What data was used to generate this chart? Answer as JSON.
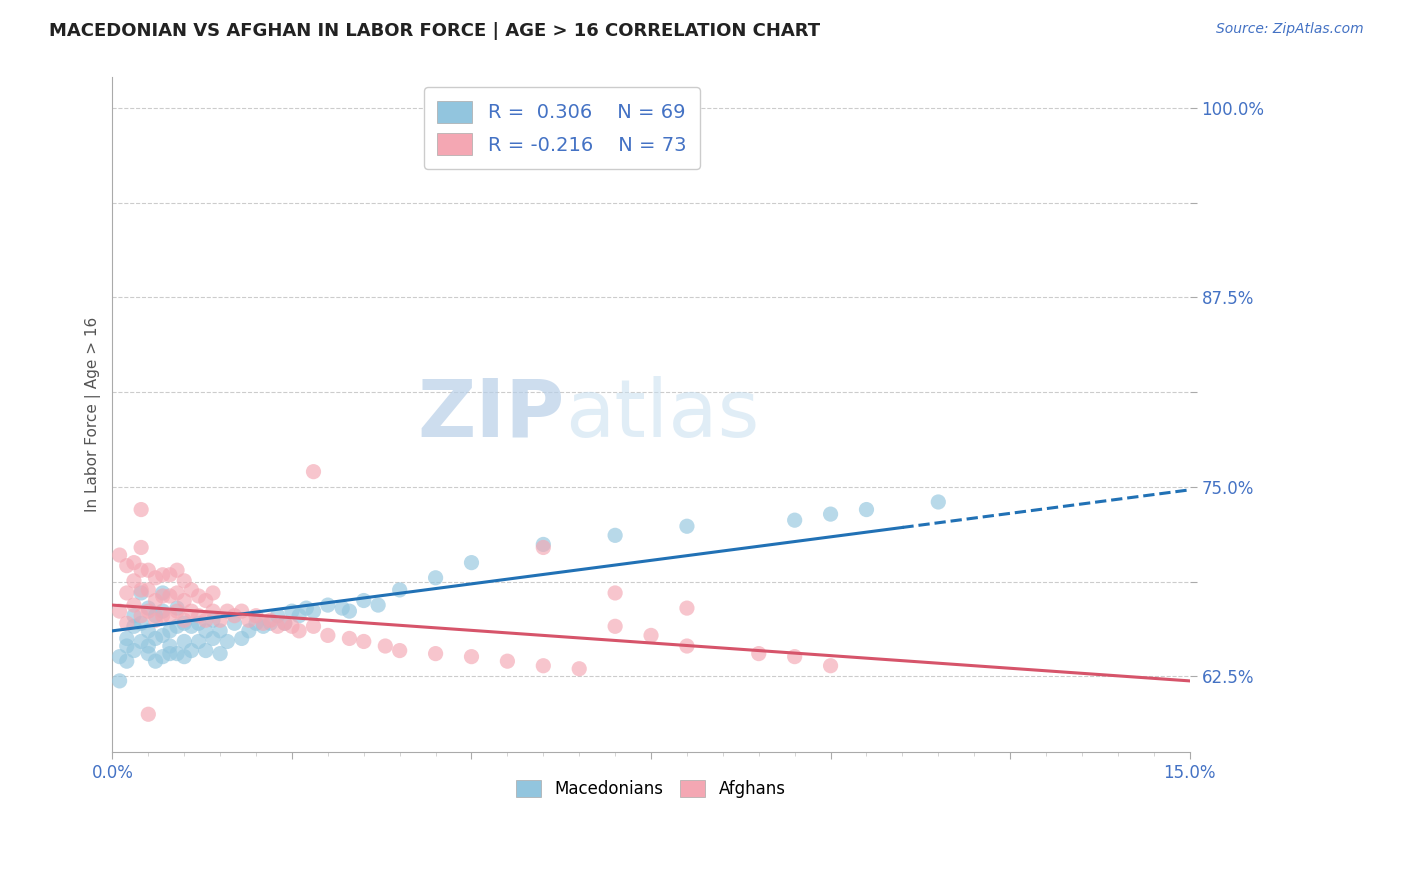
{
  "title": "MACEDONIAN VS AFGHAN IN LABOR FORCE | AGE > 16 CORRELATION CHART",
  "source_text": "Source: ZipAtlas.com",
  "ylabel": "In Labor Force | Age > 16",
  "xlim": [
    0.0,
    0.15
  ],
  "ylim": [
    0.575,
    1.02
  ],
  "xticks": [
    0.0,
    0.025,
    0.05,
    0.075,
    0.1,
    0.125,
    0.15
  ],
  "xticklabels": [
    "0.0%",
    "",
    "",
    "",
    "",
    "",
    "15.0%"
  ],
  "yticks": [
    0.625,
    0.6875,
    0.75,
    0.8125,
    0.875,
    0.9375,
    1.0
  ],
  "yticklabels": [
    "62.5%",
    "",
    "75.0%",
    "",
    "87.5%",
    "",
    "100.0%"
  ],
  "macedonian_R": 0.306,
  "macedonian_N": 69,
  "afghan_R": -0.216,
  "afghan_N": 73,
  "blue_color": "#92c5de",
  "pink_color": "#f4a7b3",
  "blue_line_color": "#2171b5",
  "pink_line_color": "#d6546a",
  "watermark_zip": "ZIP",
  "watermark_atlas": "atlas",
  "mac_trend_x0": 0.0,
  "mac_trend_y0": 0.655,
  "mac_trend_x1": 0.15,
  "mac_trend_y1": 0.748,
  "afg_trend_x0": 0.0,
  "afg_trend_y0": 0.672,
  "afg_trend_x1": 0.15,
  "afg_trend_y1": 0.622,
  "macedonian_scatter_x": [
    0.001,
    0.001,
    0.002,
    0.002,
    0.002,
    0.003,
    0.003,
    0.003,
    0.004,
    0.004,
    0.004,
    0.005,
    0.005,
    0.005,
    0.005,
    0.006,
    0.006,
    0.006,
    0.007,
    0.007,
    0.007,
    0.007,
    0.008,
    0.008,
    0.008,
    0.009,
    0.009,
    0.009,
    0.01,
    0.01,
    0.01,
    0.011,
    0.011,
    0.012,
    0.012,
    0.013,
    0.013,
    0.014,
    0.014,
    0.015,
    0.015,
    0.016,
    0.017,
    0.018,
    0.019,
    0.02,
    0.021,
    0.022,
    0.023,
    0.024,
    0.025,
    0.026,
    0.027,
    0.028,
    0.03,
    0.032,
    0.033,
    0.035,
    0.037,
    0.04,
    0.045,
    0.05,
    0.06,
    0.07,
    0.08,
    0.095,
    0.1,
    0.105,
    0.115
  ],
  "macedonian_scatter_y": [
    0.638,
    0.622,
    0.65,
    0.635,
    0.645,
    0.642,
    0.658,
    0.665,
    0.648,
    0.66,
    0.68,
    0.64,
    0.655,
    0.645,
    0.67,
    0.635,
    0.65,
    0.665,
    0.638,
    0.652,
    0.668,
    0.68,
    0.64,
    0.655,
    0.645,
    0.64,
    0.658,
    0.67,
    0.638,
    0.648,
    0.66,
    0.642,
    0.658,
    0.648,
    0.66,
    0.642,
    0.655,
    0.65,
    0.662,
    0.64,
    0.655,
    0.648,
    0.66,
    0.65,
    0.655,
    0.66,
    0.658,
    0.66,
    0.665,
    0.66,
    0.668,
    0.665,
    0.67,
    0.668,
    0.672,
    0.67,
    0.668,
    0.675,
    0.672,
    0.682,
    0.69,
    0.7,
    0.712,
    0.718,
    0.724,
    0.728,
    0.732,
    0.735,
    0.74
  ],
  "afghan_scatter_x": [
    0.001,
    0.001,
    0.002,
    0.002,
    0.002,
    0.003,
    0.003,
    0.003,
    0.004,
    0.004,
    0.004,
    0.004,
    0.005,
    0.005,
    0.005,
    0.006,
    0.006,
    0.006,
    0.007,
    0.007,
    0.007,
    0.008,
    0.008,
    0.008,
    0.009,
    0.009,
    0.009,
    0.01,
    0.01,
    0.01,
    0.011,
    0.011,
    0.012,
    0.012,
    0.013,
    0.013,
    0.014,
    0.014,
    0.015,
    0.016,
    0.017,
    0.018,
    0.019,
    0.02,
    0.021,
    0.022,
    0.023,
    0.024,
    0.025,
    0.026,
    0.028,
    0.03,
    0.033,
    0.035,
    0.038,
    0.04,
    0.045,
    0.05,
    0.055,
    0.06,
    0.065,
    0.07,
    0.075,
    0.08,
    0.09,
    0.095,
    0.1,
    0.028,
    0.004,
    0.005,
    0.06,
    0.07,
    0.08
  ],
  "afghan_scatter_y": [
    0.668,
    0.705,
    0.66,
    0.68,
    0.698,
    0.672,
    0.688,
    0.7,
    0.665,
    0.682,
    0.695,
    0.71,
    0.668,
    0.682,
    0.695,
    0.662,
    0.675,
    0.69,
    0.665,
    0.678,
    0.692,
    0.665,
    0.678,
    0.692,
    0.668,
    0.68,
    0.695,
    0.662,
    0.675,
    0.688,
    0.668,
    0.682,
    0.665,
    0.678,
    0.662,
    0.675,
    0.668,
    0.68,
    0.662,
    0.668,
    0.665,
    0.668,
    0.662,
    0.665,
    0.66,
    0.662,
    0.658,
    0.66,
    0.658,
    0.655,
    0.658,
    0.652,
    0.65,
    0.648,
    0.645,
    0.642,
    0.64,
    0.638,
    0.635,
    0.632,
    0.63,
    0.658,
    0.652,
    0.645,
    0.64,
    0.638,
    0.632,
    0.76,
    0.735,
    0.6,
    0.71,
    0.68,
    0.67
  ]
}
